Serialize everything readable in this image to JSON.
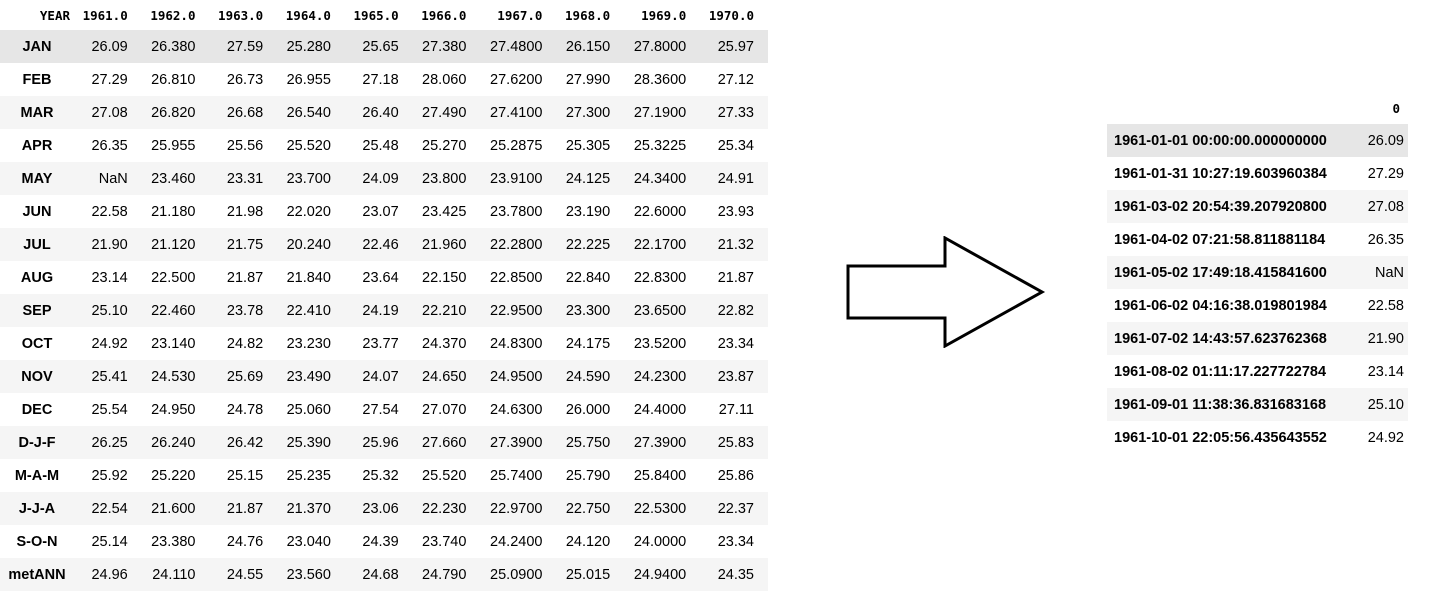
{
  "left_table": {
    "corner_label": "YEAR",
    "columns": [
      "1961.0",
      "1962.0",
      "1963.0",
      "1964.0",
      "1965.0",
      "1966.0",
      "1967.0",
      "1968.0",
      "1969.0",
      "1970.0"
    ],
    "rows": [
      {
        "label": "JAN",
        "values": [
          "26.09",
          "26.380",
          "27.59",
          "25.280",
          "25.65",
          "27.380",
          "27.4800",
          "26.150",
          "27.8000",
          "25.97"
        ]
      },
      {
        "label": "FEB",
        "values": [
          "27.29",
          "26.810",
          "26.73",
          "26.955",
          "27.18",
          "28.060",
          "27.6200",
          "27.990",
          "28.3600",
          "27.12"
        ]
      },
      {
        "label": "MAR",
        "values": [
          "27.08",
          "26.820",
          "26.68",
          "26.540",
          "26.40",
          "27.490",
          "27.4100",
          "27.300",
          "27.1900",
          "27.33"
        ]
      },
      {
        "label": "APR",
        "values": [
          "26.35",
          "25.955",
          "25.56",
          "25.520",
          "25.48",
          "25.270",
          "25.2875",
          "25.305",
          "25.3225",
          "25.34"
        ]
      },
      {
        "label": "MAY",
        "values": [
          "NaN",
          "23.460",
          "23.31",
          "23.700",
          "24.09",
          "23.800",
          "23.9100",
          "24.125",
          "24.3400",
          "24.91"
        ]
      },
      {
        "label": "JUN",
        "values": [
          "22.58",
          "21.180",
          "21.98",
          "22.020",
          "23.07",
          "23.425",
          "23.7800",
          "23.190",
          "22.6000",
          "23.93"
        ]
      },
      {
        "label": "JUL",
        "values": [
          "21.90",
          "21.120",
          "21.75",
          "20.240",
          "22.46",
          "21.960",
          "22.2800",
          "22.225",
          "22.1700",
          "21.32"
        ]
      },
      {
        "label": "AUG",
        "values": [
          "23.14",
          "22.500",
          "21.87",
          "21.840",
          "23.64",
          "22.150",
          "22.8500",
          "22.840",
          "22.8300",
          "21.87"
        ]
      },
      {
        "label": "SEP",
        "values": [
          "25.10",
          "22.460",
          "23.78",
          "22.410",
          "24.19",
          "22.210",
          "22.9500",
          "23.300",
          "23.6500",
          "22.82"
        ]
      },
      {
        "label": "OCT",
        "values": [
          "24.92",
          "23.140",
          "24.82",
          "23.230",
          "23.77",
          "24.370",
          "24.8300",
          "24.175",
          "23.5200",
          "23.34"
        ]
      },
      {
        "label": "NOV",
        "values": [
          "25.41",
          "24.530",
          "25.69",
          "23.490",
          "24.07",
          "24.650",
          "24.9500",
          "24.590",
          "24.2300",
          "23.87"
        ]
      },
      {
        "label": "DEC",
        "values": [
          "25.54",
          "24.950",
          "24.78",
          "25.060",
          "27.54",
          "27.070",
          "24.6300",
          "26.000",
          "24.4000",
          "27.11"
        ]
      },
      {
        "label": "D-J-F",
        "values": [
          "26.25",
          "26.240",
          "26.42",
          "25.390",
          "25.96",
          "27.660",
          "27.3900",
          "25.750",
          "27.3900",
          "25.83"
        ]
      },
      {
        "label": "M-A-M",
        "values": [
          "25.92",
          "25.220",
          "25.15",
          "25.235",
          "25.32",
          "25.520",
          "25.7400",
          "25.790",
          "25.8400",
          "25.86"
        ]
      },
      {
        "label": "J-J-A",
        "values": [
          "22.54",
          "21.600",
          "21.87",
          "21.370",
          "23.06",
          "22.230",
          "22.9700",
          "22.750",
          "22.5300",
          "22.37"
        ]
      },
      {
        "label": "S-O-N",
        "values": [
          "25.14",
          "23.380",
          "24.76",
          "23.040",
          "24.39",
          "23.740",
          "24.2400",
          "24.120",
          "24.0000",
          "23.34"
        ]
      },
      {
        "label": "metANN",
        "values": [
          "24.96",
          "24.110",
          "24.55",
          "23.560",
          "24.68",
          "24.790",
          "25.0900",
          "25.015",
          "24.9400",
          "24.35"
        ]
      }
    ]
  },
  "arrow": {
    "icon": "right-arrow-icon",
    "stroke_color": "#000000",
    "fill_color": "#ffffff"
  },
  "right_table": {
    "column_label": "0",
    "rows": [
      {
        "timestamp": "1961-01-01 00:00:00.000000000",
        "value": "26.09"
      },
      {
        "timestamp": "1961-01-31 10:27:19.603960384",
        "value": "27.29"
      },
      {
        "timestamp": "1961-03-02 20:54:39.207920800",
        "value": "27.08"
      },
      {
        "timestamp": "1961-04-02 07:21:58.811881184",
        "value": "26.35"
      },
      {
        "timestamp": "1961-05-02 17:49:18.415841600",
        "value": "NaN"
      },
      {
        "timestamp": "1961-06-02 04:16:38.019801984",
        "value": "22.58"
      },
      {
        "timestamp": "1961-07-02 14:43:57.623762368",
        "value": "21.90"
      },
      {
        "timestamp": "1961-08-02 01:11:17.227722784",
        "value": "23.14"
      },
      {
        "timestamp": "1961-09-01 11:38:36.831683168",
        "value": "25.10"
      },
      {
        "timestamp": "1961-10-01 22:05:56.435643552",
        "value": "24.92"
      }
    ]
  },
  "colors": {
    "row_highlight": "#e6e6e6",
    "row_stripe": "#f5f5f5"
  }
}
